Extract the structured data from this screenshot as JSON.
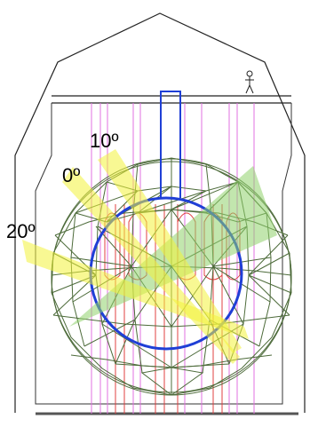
{
  "labels": {
    "angle_10": "10º",
    "angle_0": "0º",
    "angle_20": "20º"
  },
  "colors": {
    "outline": "#222222",
    "dome": "#4d6b3a",
    "sphere": "#1f3fd6",
    "shaft": "#1f3fd6",
    "beam_yellow": "#f2f23a",
    "beam_green": "#8fd16b",
    "lines_magenta": "#e070e0",
    "lines_red": "#e04040",
    "ground": "#555555"
  },
  "icons": {
    "person": "person-icon"
  }
}
